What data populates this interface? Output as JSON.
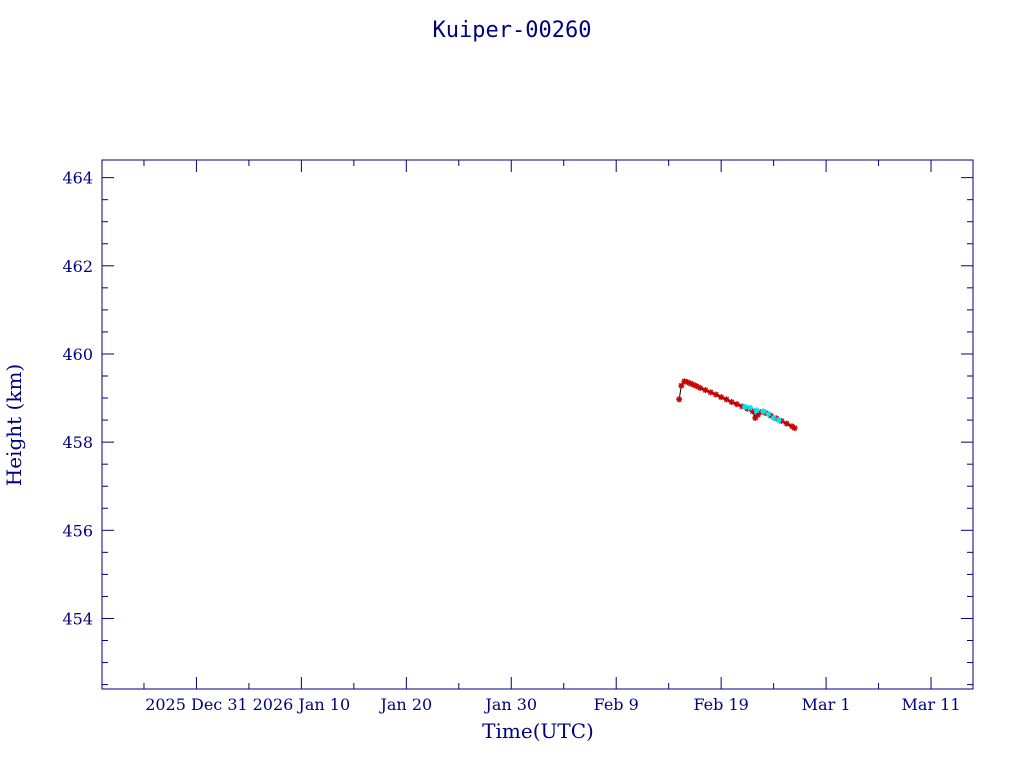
{
  "chart_data": {
    "type": "scatter",
    "title": "Kuiper-00260",
    "xlabel": "Time(UTC)",
    "ylabel": "Height (km)",
    "x_tick_labels": [
      "2025 Dec 31",
      "2026 Jan 10",
      "Jan 20",
      "Jan 30",
      "Feb  9",
      "Feb 19",
      "Mar  1",
      "Mar 11"
    ],
    "x_ticks": [
      "2025-12-31",
      "2026-01-10",
      "2026-01-20",
      "2026-01-30",
      "2026-02-09",
      "2026-02-19",
      "2026-03-01",
      "2026-03-11"
    ],
    "xlim": [
      "2025-12-22",
      "2026-03-15"
    ],
    "ylim": [
      452.4,
      464.4
    ],
    "y_ticks": [
      454,
      456,
      458,
      460,
      462,
      464
    ],
    "grid": false,
    "colors": {
      "axis": "#000080",
      "line": "#000000",
      "series_a": "#cc0000",
      "series_b": "#00e5ee"
    },
    "series": [
      {
        "marker": "star",
        "color": "#cc0000",
        "points": [
          [
            "2026-02-15T00:00",
            458.97
          ],
          [
            "2026-02-15T05:00",
            459.28
          ],
          [
            "2026-02-15T12:00",
            459.38
          ],
          [
            "2026-02-15T19:00",
            459.36
          ],
          [
            "2026-02-16T02:00",
            459.33
          ],
          [
            "2026-02-16T09:00",
            459.3
          ],
          [
            "2026-02-16T16:00",
            459.27
          ],
          [
            "2026-02-17T00:00",
            459.23
          ],
          [
            "2026-02-17T12:00",
            459.18
          ],
          [
            "2026-02-18T00:00",
            459.13
          ],
          [
            "2026-02-18T12:00",
            459.08
          ],
          [
            "2026-02-19T00:00",
            459.02
          ],
          [
            "2026-02-19T12:00",
            458.97
          ],
          [
            "2026-02-20T00:00",
            458.91
          ],
          [
            "2026-02-20T12:00",
            458.86
          ],
          [
            "2026-02-21T00:00",
            458.81
          ],
          [
            "2026-02-21T12:00",
            458.76
          ],
          [
            "2026-02-22T00:00",
            458.7
          ],
          [
            "2026-02-22T06:00",
            458.55
          ],
          [
            "2026-02-22T12:00",
            458.62
          ],
          [
            "2026-02-22T18:00",
            458.68
          ],
          [
            "2026-02-23T06:00",
            458.66
          ],
          [
            "2026-02-23T18:00",
            458.6
          ],
          [
            "2026-02-24T06:00",
            458.54
          ],
          [
            "2026-02-24T18:00",
            458.48
          ],
          [
            "2026-02-25T06:00",
            458.42
          ],
          [
            "2026-02-25T18:00",
            458.36
          ],
          [
            "2026-02-26T00:00",
            458.32
          ]
        ]
      },
      {
        "marker": "star",
        "color": "#00e5ee",
        "points": [
          [
            "2026-02-21T06:00",
            458.8
          ],
          [
            "2026-02-21T18:00",
            458.78
          ],
          [
            "2026-02-22T09:00",
            458.72
          ],
          [
            "2026-02-23T00:00",
            458.7
          ],
          [
            "2026-02-23T12:00",
            458.64
          ],
          [
            "2026-02-24T00:00",
            458.55
          ],
          [
            "2026-02-24T12:00",
            458.5
          ]
        ]
      }
    ]
  }
}
